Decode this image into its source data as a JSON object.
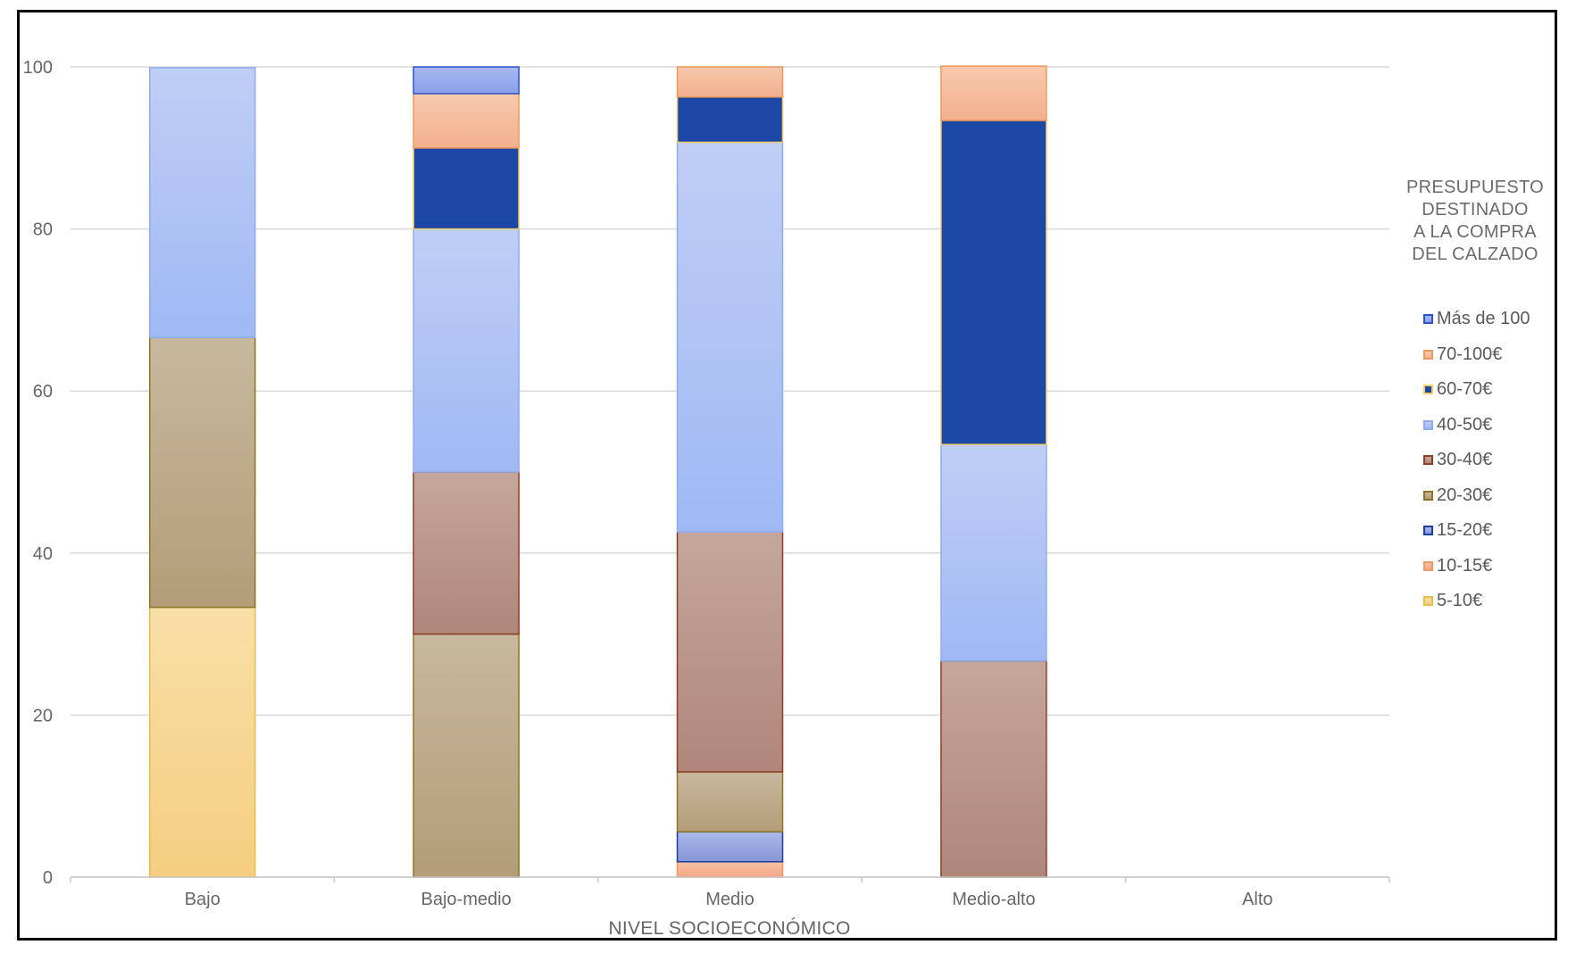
{
  "chart_data": {
    "type": "bar",
    "stacked": true,
    "categories": [
      "Bajo",
      "Bajo-medio",
      "Medio",
      "Medio-alto",
      "Alto"
    ],
    "xlabel": "NIVEL SOCIOECONÓMICO",
    "ylabel": "",
    "ylim": [
      0,
      100
    ],
    "yticks": [
      0,
      20,
      40,
      60,
      80,
      100
    ],
    "grid": true,
    "legend_title": "PRESUPUESTO\nDESTINADO\nA LA COMPRA\nDEL CALZADO",
    "legend_position": "right",
    "series": [
      {
        "name": "5-10€",
        "values": [
          33.3,
          0,
          0,
          0,
          0
        ],
        "fill_top": "#f8dfa8",
        "fill_bottom": "#f5ce80",
        "stroke": "#e8be4a"
      },
      {
        "name": "10-15€",
        "values": [
          0,
          0,
          1.9,
          0,
          0
        ],
        "fill_top": "#f8c2a4",
        "fill_bottom": "#f3a685",
        "stroke": "#ee9960"
      },
      {
        "name": "15-20€",
        "values": [
          0,
          0,
          3.7,
          0,
          0
        ],
        "fill_top": "#a9b8e8",
        "fill_bottom": "#8696d6",
        "stroke": "#1c3e9e"
      },
      {
        "name": "20-30€",
        "values": [
          33.3,
          30,
          7.4,
          0,
          0
        ],
        "fill_top": "#c8b89e",
        "fill_bottom": "#b49d78",
        "stroke": "#8e7426"
      },
      {
        "name": "30-40€",
        "values": [
          0,
          20,
          29.6,
          26.7,
          0
        ],
        "fill_top": "#c4a79c",
        "fill_bottom": "#b0867a",
        "stroke": "#8e3e24"
      },
      {
        "name": "40-50€",
        "values": [
          33.3,
          30,
          48.1,
          26.7,
          0
        ],
        "fill_top": "#bfcef5",
        "fill_bottom": "#a0b9f4",
        "stroke": "#8fabee"
      },
      {
        "name": "60-70€",
        "values": [
          0,
          10,
          5.6,
          40,
          0
        ],
        "fill_top": "#1d47a6",
        "fill_bottom": "#1d47a6",
        "stroke": "#f2ce68"
      },
      {
        "name": "70-100€",
        "values": [
          0,
          6.7,
          3.7,
          6.7,
          0
        ],
        "fill_top": "#f7c9ad",
        "fill_bottom": "#f3b08e",
        "stroke": "#ee9a5c"
      },
      {
        "name": "Más de 100",
        "values": [
          0,
          3.3,
          0,
          0,
          0
        ],
        "fill_top": "#a8b8f0",
        "fill_bottom": "#8a9fe8",
        "stroke": "#2c55c8"
      }
    ]
  }
}
